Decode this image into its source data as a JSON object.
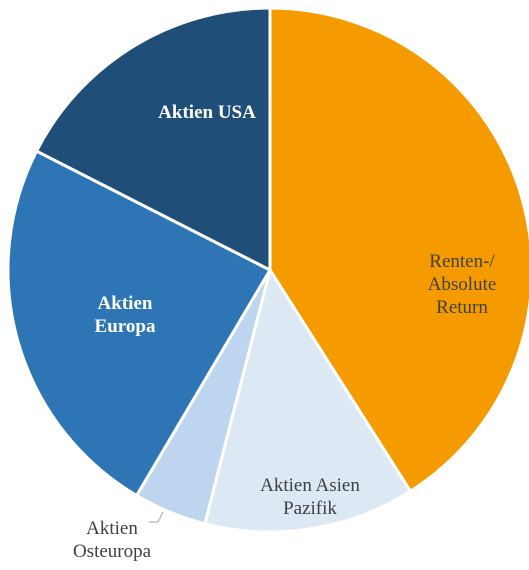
{
  "chart_data": {
    "type": "pie",
    "categories": [
      "Renten-/\nAbsolute\nReturn",
      "Aktien Asien\nPazifik",
      "Aktien\nOsteuropa",
      "Aktien\nEuropa",
      "Aktien USA"
    ],
    "values": [
      41,
      13,
      4.5,
      24,
      17.5
    ],
    "colors": [
      "#f59b00",
      "#dde8f5",
      "#bdd5ee",
      "#2e75b6",
      "#1f4e79"
    ]
  }
}
